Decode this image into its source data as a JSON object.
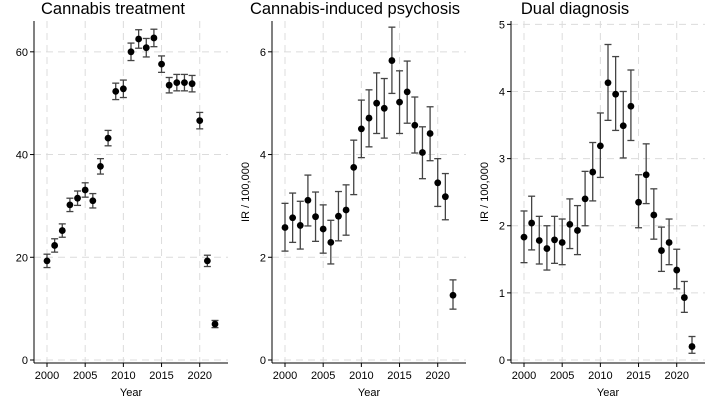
{
  "chart_data": [
    {
      "type": "scatter",
      "title": "Cannabis treatment",
      "xlabel": "Year",
      "ylabel": "",
      "xlim": [
        2000,
        2022
      ],
      "ylim": [
        0,
        66
      ],
      "xticks": [
        2000,
        2005,
        2010,
        2015,
        2020
      ],
      "yticks": [
        0,
        20,
        40,
        60
      ],
      "grid": true,
      "series": [
        {
          "x": [
            2000,
            2001,
            2002,
            2003,
            2004,
            2005,
            2006,
            2007,
            2008,
            2009,
            2010,
            2011,
            2012,
            2013,
            2014,
            2015,
            2016,
            2017,
            2018,
            2019,
            2020,
            2021,
            2022
          ],
          "y": [
            19.3,
            22.3,
            25.2,
            30.2,
            31.5,
            33.1,
            31.0,
            37.7,
            43.2,
            52.3,
            52.8,
            60.0,
            62.5,
            60.8,
            62.7,
            57.6,
            53.5,
            54.0,
            54.0,
            53.8,
            46.6,
            19.3,
            7.0
          ],
          "lower": [
            18.0,
            21.0,
            23.9,
            28.9,
            30.1,
            31.7,
            29.6,
            36.2,
            41.7,
            50.7,
            51.1,
            58.3,
            60.7,
            59.0,
            61.0,
            56.0,
            52.0,
            52.4,
            52.4,
            52.2,
            45.0,
            18.2,
            6.3
          ],
          "upper": [
            20.6,
            23.6,
            26.5,
            31.5,
            32.9,
            34.5,
            32.4,
            39.2,
            44.7,
            53.9,
            54.5,
            61.7,
            64.3,
            62.6,
            64.4,
            59.2,
            55.0,
            55.6,
            55.6,
            55.4,
            48.2,
            20.4,
            7.7
          ]
        }
      ]
    },
    {
      "type": "scatter",
      "title": "Cannabis-induced psychosis",
      "xlabel": "Year",
      "ylabel": "IR / 100,000",
      "xlim": [
        2000,
        2022
      ],
      "ylim": [
        0,
        6.6
      ],
      "xticks": [
        2000,
        2005,
        2010,
        2015,
        2020
      ],
      "yticks": [
        0,
        2,
        4,
        6
      ],
      "grid": true,
      "series": [
        {
          "x": [
            2000,
            2001,
            2002,
            2003,
            2004,
            2005,
            2006,
            2007,
            2008,
            2009,
            2010,
            2011,
            2012,
            2013,
            2014,
            2015,
            2016,
            2017,
            2018,
            2019,
            2020,
            2021,
            2022
          ],
          "y": [
            2.58,
            2.77,
            2.62,
            3.11,
            2.79,
            2.55,
            2.29,
            2.8,
            2.92,
            3.75,
            4.5,
            4.71,
            5.0,
            4.9,
            5.83,
            5.02,
            5.22,
            4.57,
            4.04,
            4.41,
            3.45,
            3.18,
            1.26
          ],
          "lower": [
            2.12,
            2.29,
            2.16,
            2.61,
            2.31,
            2.08,
            1.87,
            2.32,
            2.43,
            3.22,
            3.94,
            4.15,
            4.41,
            4.32,
            5.19,
            4.41,
            4.61,
            4.03,
            3.53,
            3.88,
            2.99,
            2.73,
            0.99
          ],
          "upper": [
            3.05,
            3.25,
            3.09,
            3.6,
            3.27,
            3.02,
            2.72,
            3.28,
            3.41,
            4.28,
            5.06,
            5.26,
            5.59,
            5.48,
            6.48,
            5.63,
            5.82,
            5.12,
            4.54,
            4.93,
            3.92,
            3.63,
            1.56
          ]
        }
      ]
    },
    {
      "type": "scatter",
      "title": "Dual diagnosis",
      "xlabel": "Year",
      "ylabel": "IR / 100,000",
      "xlim": [
        2000,
        2022
      ],
      "ylim": [
        0,
        5.05
      ],
      "xticks": [
        2000,
        2005,
        2010,
        2015,
        2020
      ],
      "yticks": [
        0,
        1,
        2,
        3,
        4,
        5
      ],
      "grid": true,
      "series": [
        {
          "x": [
            2000,
            2001,
            2002,
            2003,
            2004,
            2005,
            2006,
            2007,
            2008,
            2009,
            2010,
            2011,
            2012,
            2013,
            2014,
            2015,
            2016,
            2017,
            2018,
            2019,
            2020,
            2021,
            2022
          ],
          "y": [
            1.83,
            2.04,
            1.78,
            1.66,
            1.79,
            1.75,
            2.02,
            1.93,
            2.4,
            2.8,
            3.19,
            4.13,
            3.96,
            3.49,
            3.78,
            2.35,
            2.76,
            2.16,
            1.63,
            1.75,
            1.34,
            0.93,
            0.2
          ],
          "lower": [
            1.45,
            1.64,
            1.43,
            1.34,
            1.44,
            1.42,
            1.66,
            1.57,
            2.0,
            2.37,
            2.72,
            3.57,
            3.42,
            3.01,
            3.27,
            1.97,
            2.33,
            1.8,
            1.32,
            1.42,
            1.06,
            0.71,
            0.1
          ],
          "upper": [
            2.22,
            2.44,
            2.14,
            2.0,
            2.14,
            2.1,
            2.4,
            2.3,
            2.81,
            3.24,
            3.68,
            4.7,
            4.52,
            4.0,
            4.32,
            2.76,
            3.22,
            2.55,
            1.98,
            2.1,
            1.65,
            1.17,
            0.35
          ]
        }
      ]
    }
  ]
}
